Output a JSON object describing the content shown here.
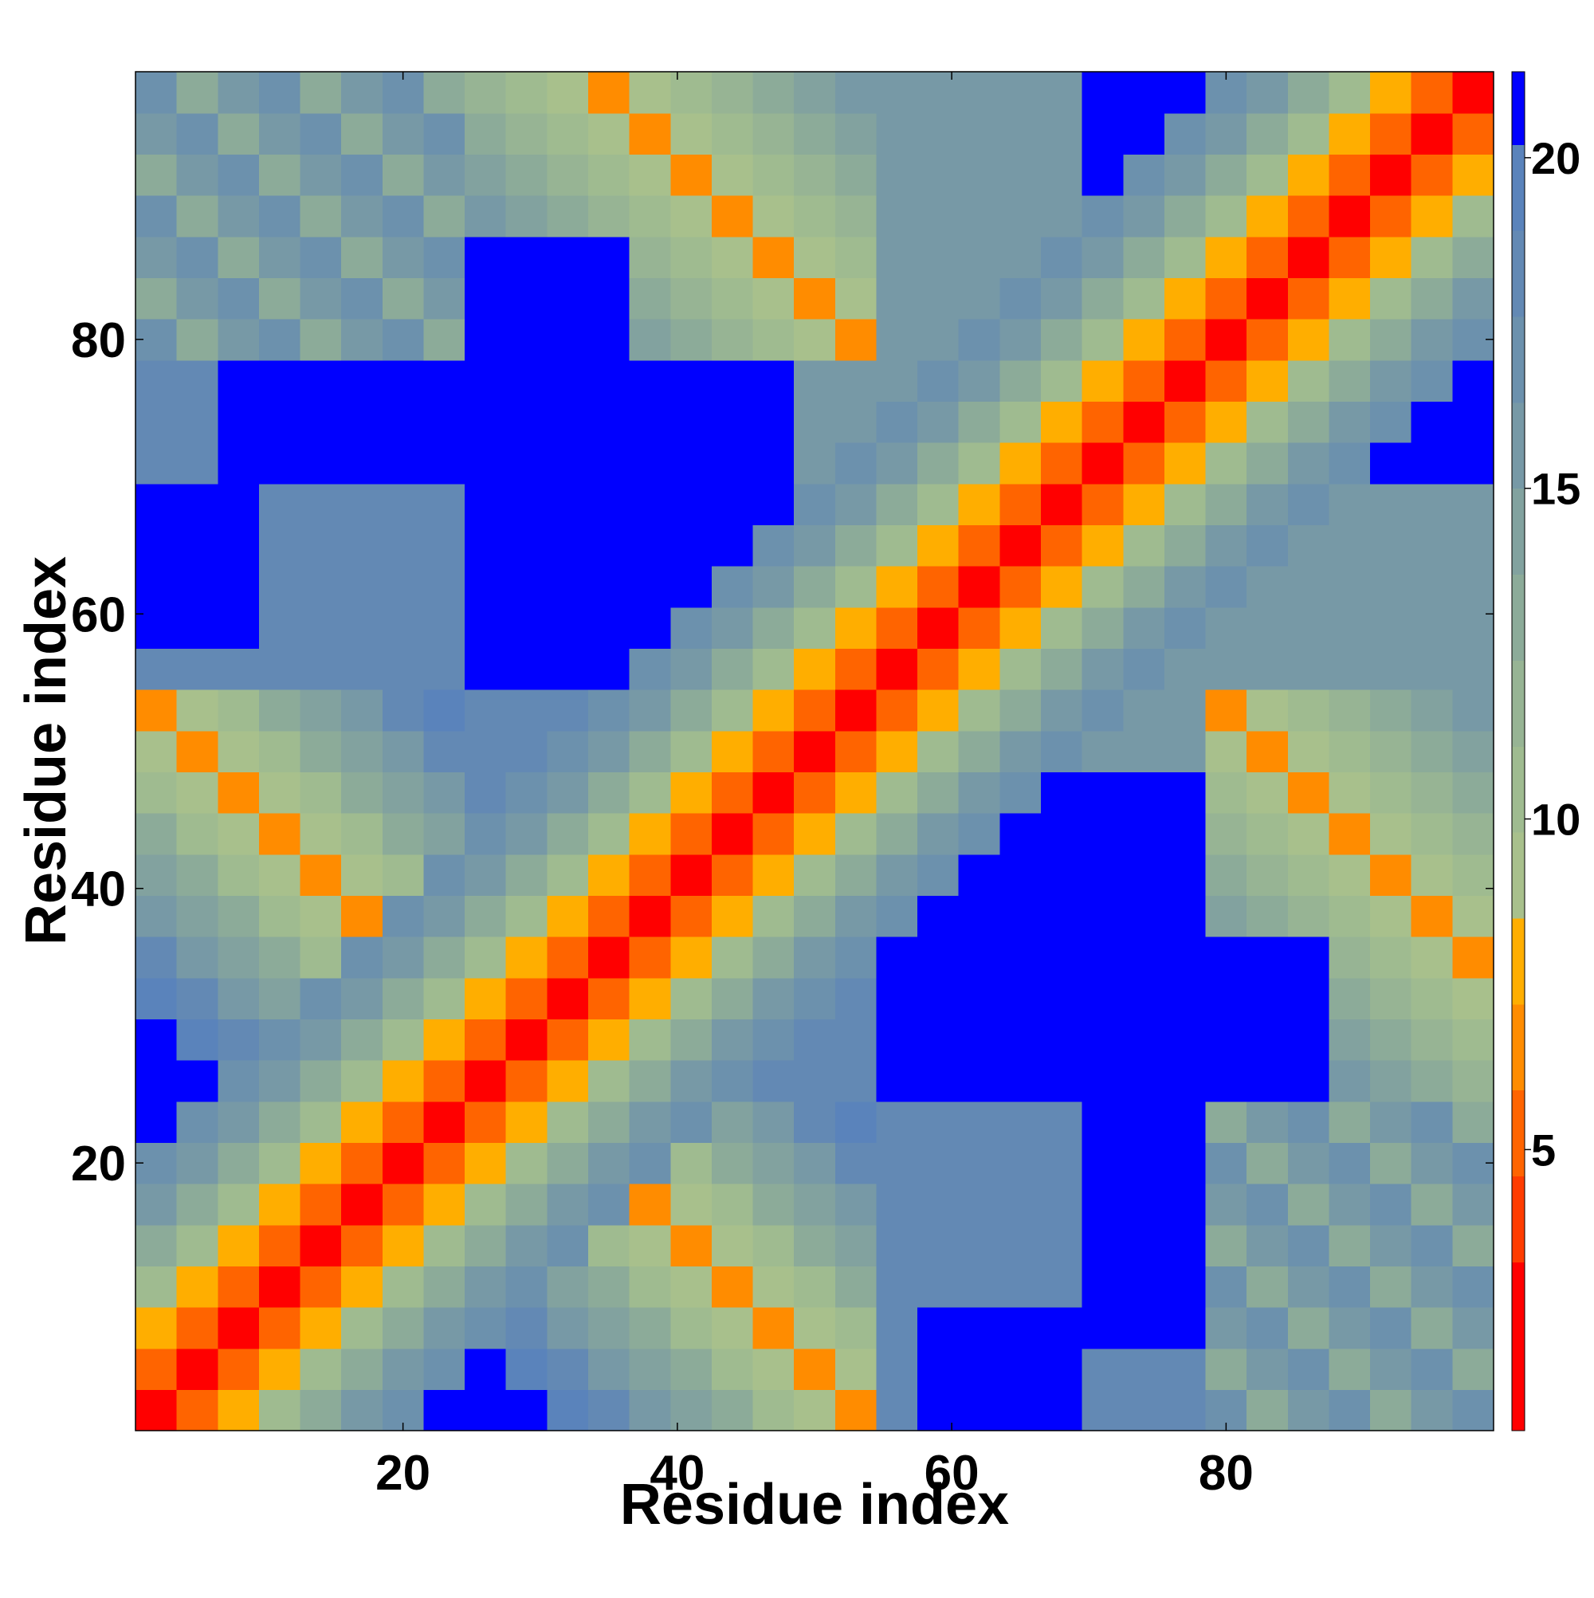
{
  "chart_data": {
    "type": "heatmap",
    "xlabel": "Residue index",
    "ylabel": "Residue index",
    "x": [
      2,
      5,
      8,
      11,
      14,
      17,
      20,
      23,
      26,
      29,
      32,
      35,
      38,
      41,
      44,
      47,
      50,
      53,
      56,
      59,
      62,
      65,
      68,
      71,
      74,
      77,
      80,
      83,
      86,
      89,
      92,
      95,
      98
    ],
    "y": [
      2,
      5,
      8,
      11,
      14,
      17,
      20,
      23,
      26,
      29,
      32,
      35,
      38,
      41,
      44,
      47,
      50,
      53,
      56,
      59,
      62,
      65,
      68,
      71,
      74,
      77,
      80,
      83,
      86,
      89,
      92,
      95,
      98
    ],
    "xlim": [
      0.5,
      99.5
    ],
    "ylim": [
      0.5,
      99.5
    ],
    "xticks": [
      20,
      40,
      60,
      80
    ],
    "yticks": [
      20,
      40,
      60,
      80
    ],
    "colorbar": {
      "levels": [
        0.75,
        3.3,
        4.6,
        5.9,
        7.2,
        8.5,
        9.8,
        11.1,
        12.4,
        13.7,
        15.0,
        16.3,
        17.6,
        18.9,
        20.2,
        21.3
      ],
      "colors": [
        "#ff0000",
        "#ff3c00",
        "#ff6400",
        "#ff8c00",
        "#ffae00",
        "#a8c08c",
        "#9fbb90",
        "#97b494",
        "#8cab99",
        "#82a29f",
        "#7799a6",
        "#6c91ad",
        "#6389b4",
        "#5a83bb",
        "#0000ff"
      ],
      "ticks": [
        5,
        10,
        15,
        20
      ]
    },
    "values": [
      [
        2,
        5,
        8,
        10.5,
        12.5,
        15,
        17.5,
        21,
        21,
        21,
        19.6,
        17.8,
        16,
        14.2,
        12.4,
        10.6,
        8.8,
        7,
        18.5,
        21,
        21,
        21,
        21,
        18,
        18,
        18,
        17.5,
        13.5,
        16,
        17.5,
        13.5,
        16,
        17.5
      ],
      [
        5,
        2,
        5,
        8,
        10.5,
        12.5,
        15,
        17.5,
        21,
        19.6,
        17.8,
        16,
        14.2,
        12.4,
        10.6,
        8.8,
        7,
        8.8,
        18.5,
        21,
        21,
        21,
        21,
        18,
        18,
        18,
        13.5,
        16,
        17.5,
        13.5,
        16,
        17.5,
        13.5
      ],
      [
        8,
        5,
        2,
        5,
        8,
        10.5,
        12.5,
        15,
        17.5,
        17.8,
        16,
        14.2,
        12.4,
        10.6,
        8.8,
        7,
        8.8,
        10.6,
        18.5,
        21,
        21,
        21,
        21,
        21,
        21,
        21,
        16,
        17.5,
        13.5,
        16,
        17.5,
        13.5,
        16
      ],
      [
        10.5,
        8,
        5,
        2,
        5,
        8,
        10.5,
        12.5,
        15,
        17.5,
        14.2,
        12.4,
        10.6,
        8.8,
        7,
        8.8,
        10.6,
        12.4,
        18.5,
        18.5,
        18.5,
        18.5,
        18.5,
        21,
        21,
        21,
        17.5,
        13.5,
        16,
        17.5,
        13.5,
        16,
        17.5
      ],
      [
        12.5,
        10.5,
        8,
        5,
        2,
        5,
        8,
        10.5,
        12.5,
        15,
        17.5,
        10.6,
        8.8,
        7,
        8.8,
        10.6,
        12.4,
        14.2,
        18.5,
        18.5,
        18.5,
        18.5,
        18.5,
        21,
        21,
        21,
        13.5,
        16,
        17.5,
        13.5,
        16,
        17.5,
        13.5
      ],
      [
        15,
        12.5,
        10.5,
        8,
        5,
        2,
        5,
        8,
        10.5,
        12.5,
        15,
        17.5,
        7,
        8.8,
        10.6,
        12.4,
        14.2,
        16,
        18.5,
        18.5,
        18.5,
        18.5,
        18.5,
        21,
        21,
        21,
        16,
        17.5,
        13.5,
        16,
        17.5,
        13.5,
        16
      ],
      [
        17.5,
        15,
        12.5,
        10.5,
        8,
        5,
        2,
        5,
        8,
        10.5,
        12.5,
        15,
        17.5,
        10.6,
        12.4,
        14.2,
        16,
        17.8,
        18.5,
        18.5,
        18.5,
        18.5,
        18.5,
        21,
        21,
        21,
        17.5,
        13.5,
        16,
        17.5,
        13.5,
        16,
        17.5
      ],
      [
        21,
        17.5,
        15,
        12.5,
        10.5,
        8,
        5,
        2,
        5,
        8,
        10.5,
        12.5,
        15,
        17.5,
        14.2,
        16,
        17.8,
        19.6,
        18.5,
        18.5,
        18.5,
        18.5,
        18.5,
        21,
        21,
        21,
        13.5,
        16,
        17.5,
        13.5,
        16,
        17.5,
        13.5
      ],
      [
        21,
        21,
        17.5,
        15,
        12.5,
        10.5,
        8,
        5,
        2,
        5,
        8,
        10.5,
        12.5,
        15,
        17.5,
        18.5,
        18.5,
        18.5,
        21,
        21,
        21,
        21,
        21,
        21,
        21,
        21,
        21,
        21,
        21,
        16,
        14.5,
        13,
        11.5
      ],
      [
        21,
        19.6,
        17.8,
        17.5,
        15,
        12.5,
        10.5,
        8,
        5,
        2,
        5,
        8,
        10.5,
        12.5,
        15,
        17.5,
        18.5,
        18.5,
        21,
        21,
        21,
        21,
        21,
        21,
        21,
        21,
        21,
        21,
        21,
        14.5,
        13,
        11.5,
        10
      ],
      [
        19.6,
        17.8,
        16,
        14.2,
        17.5,
        15,
        12.5,
        10.5,
        8,
        5,
        2,
        5,
        8,
        10.5,
        12.5,
        15,
        17.5,
        18.5,
        21,
        21,
        21,
        21,
        21,
        21,
        21,
        21,
        21,
        21,
        21,
        13,
        11.5,
        10,
        8.5
      ],
      [
        17.8,
        16,
        14.2,
        12.4,
        10.6,
        17.5,
        15,
        12.5,
        10.5,
        8,
        5,
        2,
        5,
        8,
        10.5,
        12.5,
        15,
        17.5,
        21,
        21,
        21,
        21,
        21,
        21,
        21,
        21,
        21,
        21,
        21,
        11.5,
        10,
        8.5,
        7
      ],
      [
        16,
        14.2,
        12.4,
        10.6,
        8.8,
        7,
        17.5,
        15,
        12.5,
        10.5,
        8,
        5,
        2,
        5,
        8,
        10.5,
        12.5,
        15,
        17.5,
        21,
        21,
        21,
        21,
        21,
        21,
        21,
        14.5,
        13,
        11.5,
        10,
        8.5,
        7,
        8.5
      ],
      [
        14.2,
        12.4,
        10.6,
        8.8,
        7,
        8.8,
        10.6,
        17.5,
        15,
        12.5,
        10.5,
        8,
        5,
        2,
        5,
        8,
        10.5,
        12.5,
        15,
        17.5,
        21,
        21,
        21,
        21,
        21,
        21,
        13,
        11.5,
        10,
        8.5,
        7,
        8.5,
        10
      ],
      [
        12.4,
        10.6,
        8.8,
        7,
        8.8,
        10.6,
        12.4,
        14.2,
        17.5,
        15,
        12.5,
        10.5,
        8,
        5,
        2,
        5,
        8,
        10.5,
        12.5,
        15,
        17.5,
        21,
        21,
        21,
        21,
        21,
        11.5,
        10,
        8.5,
        7,
        8.5,
        10,
        11.5
      ],
      [
        10.6,
        8.8,
        7,
        8.8,
        10.6,
        12.4,
        14.2,
        16,
        18.5,
        17.5,
        15,
        12.5,
        10.5,
        8,
        5,
        2,
        5,
        8,
        10.5,
        12.5,
        15,
        17.5,
        21,
        21,
        21,
        21,
        10,
        8.5,
        7,
        8.5,
        10,
        11.5,
        13
      ],
      [
        8.8,
        7,
        8.8,
        10.6,
        12.4,
        14.2,
        16,
        17.8,
        18.5,
        18.5,
        17.5,
        15,
        12.5,
        10.5,
        8,
        5,
        2,
        5,
        8,
        10.5,
        12.5,
        15,
        17.5,
        16,
        16,
        16,
        8.5,
        7,
        8.5,
        10,
        11.5,
        13,
        14.5
      ],
      [
        7,
        8.8,
        10.6,
        12.4,
        14.2,
        16,
        17.8,
        19.6,
        18.5,
        18.5,
        18.5,
        17.5,
        15,
        12.5,
        10.5,
        8,
        5,
        2,
        5,
        8,
        10.5,
        12.5,
        15,
        17.5,
        16,
        16,
        7,
        8.5,
        10,
        11.5,
        13,
        14.5,
        16
      ],
      [
        18.5,
        18.5,
        18.5,
        18.5,
        18.5,
        18.5,
        18.5,
        18.5,
        21,
        21,
        21,
        21,
        17.5,
        15,
        12.5,
        10.5,
        8,
        5,
        2,
        5,
        8,
        10.5,
        12.5,
        15,
        17.5,
        16,
        16,
        16,
        16,
        16,
        16,
        16,
        16
      ],
      [
        21,
        21,
        21,
        18.5,
        18.5,
        18.5,
        18.5,
        18.5,
        21,
        21,
        21,
        21,
        21,
        17.5,
        15,
        12.5,
        10.5,
        8,
        5,
        2,
        5,
        8,
        10.5,
        12.5,
        15,
        17.5,
        16,
        16,
        16,
        16,
        16,
        16,
        16
      ],
      [
        21,
        21,
        21,
        18.5,
        18.5,
        18.5,
        18.5,
        18.5,
        21,
        21,
        21,
        21,
        21,
        21,
        17.5,
        15,
        12.5,
        10.5,
        8,
        5,
        2,
        5,
        8,
        10.5,
        12.5,
        15,
        17.5,
        16,
        16,
        16,
        16,
        16,
        16
      ],
      [
        21,
        21,
        21,
        18.5,
        18.5,
        18.5,
        18.5,
        18.5,
        21,
        21,
        21,
        21,
        21,
        21,
        21,
        17.5,
        15,
        12.5,
        10.5,
        8,
        5,
        2,
        5,
        8,
        10.5,
        12.5,
        15,
        17.5,
        16,
        16,
        16,
        16,
        16
      ],
      [
        21,
        21,
        21,
        18.5,
        18.5,
        18.5,
        18.5,
        18.5,
        21,
        21,
        21,
        21,
        21,
        21,
        21,
        21,
        17.5,
        15,
        12.5,
        10.5,
        8,
        5,
        2,
        5,
        8,
        10.5,
        12.5,
        15,
        17.5,
        16,
        16,
        16,
        16
      ],
      [
        18,
        18,
        21,
        21,
        21,
        21,
        21,
        21,
        21,
        21,
        21,
        21,
        21,
        21,
        21,
        21,
        16,
        17.5,
        15,
        12.5,
        10.5,
        8,
        5,
        2,
        5,
        8,
        10.5,
        12.5,
        15,
        17.5,
        21,
        21,
        21
      ],
      [
        18,
        18,
        21,
        21,
        21,
        21,
        21,
        21,
        21,
        21,
        21,
        21,
        21,
        21,
        21,
        21,
        16,
        16,
        17.5,
        15,
        12.5,
        10.5,
        8,
        5,
        2,
        5,
        8,
        10.5,
        12.5,
        15,
        17.5,
        21,
        21
      ],
      [
        18,
        18,
        21,
        21,
        21,
        21,
        21,
        21,
        21,
        21,
        21,
        21,
        21,
        21,
        21,
        21,
        16,
        16,
        16,
        17.5,
        15,
        12.5,
        10.5,
        8,
        5,
        2,
        5,
        8,
        10.5,
        12.5,
        15,
        17.5,
        21
      ],
      [
        17.5,
        13.5,
        16,
        17.5,
        13.5,
        16,
        17.5,
        13.5,
        21,
        21,
        21,
        21,
        14.5,
        13,
        11.5,
        10,
        8.5,
        7,
        16,
        16,
        17.5,
        15,
        12.5,
        10.5,
        8,
        5,
        2,
        5,
        8,
        10.5,
        12.5,
        15,
        17.5
      ],
      [
        13.5,
        16,
        17.5,
        13.5,
        16,
        17.5,
        13.5,
        16,
        21,
        21,
        21,
        21,
        13,
        11.5,
        10,
        8.5,
        7,
        8.5,
        16,
        16,
        16,
        17.5,
        15,
        12.5,
        10.5,
        8,
        5,
        2,
        5,
        8,
        10.5,
        12.5,
        15
      ],
      [
        16,
        17.5,
        13.5,
        16,
        17.5,
        13.5,
        16,
        17.5,
        21,
        21,
        21,
        21,
        11.5,
        10,
        8.5,
        7,
        8.5,
        10,
        16,
        16,
        16,
        16,
        17.5,
        15,
        12.5,
        10.5,
        8,
        5,
        2,
        5,
        8,
        10.5,
        12.5
      ],
      [
        17.5,
        13.5,
        16,
        17.5,
        13.5,
        16,
        17.5,
        13.5,
        16,
        14.5,
        13,
        11.5,
        10,
        8.5,
        7,
        8.5,
        10,
        11.5,
        16,
        16,
        16,
        16,
        16,
        17.5,
        15,
        12.5,
        10.5,
        8,
        5,
        2,
        5,
        8,
        10.5
      ],
      [
        13.5,
        16,
        17.5,
        13.5,
        16,
        17.5,
        13.5,
        16,
        14.5,
        13,
        11.5,
        10,
        8.5,
        7,
        8.5,
        10,
        11.5,
        13,
        16,
        16,
        16,
        16,
        16,
        21,
        17.5,
        15,
        12.5,
        10.5,
        8,
        5,
        2,
        5,
        8
      ],
      [
        16,
        17.5,
        13.5,
        16,
        17.5,
        13.5,
        16,
        17.5,
        13,
        11.5,
        10,
        8.5,
        7,
        8.5,
        10,
        11.5,
        13,
        14.5,
        16,
        16,
        16,
        16,
        16,
        21,
        21,
        17.5,
        15,
        12.5,
        10.5,
        8,
        5,
        2,
        5
      ],
      [
        17.5,
        13.5,
        16,
        17.5,
        13.5,
        16,
        17.5,
        13.5,
        11.5,
        10,
        8.5,
        7,
        8.5,
        10,
        11.5,
        13,
        14.5,
        16,
        16,
        16,
        16,
        16,
        16,
        21,
        21,
        21,
        17.5,
        15,
        12.5,
        10.5,
        8,
        5,
        2
      ]
    ]
  }
}
